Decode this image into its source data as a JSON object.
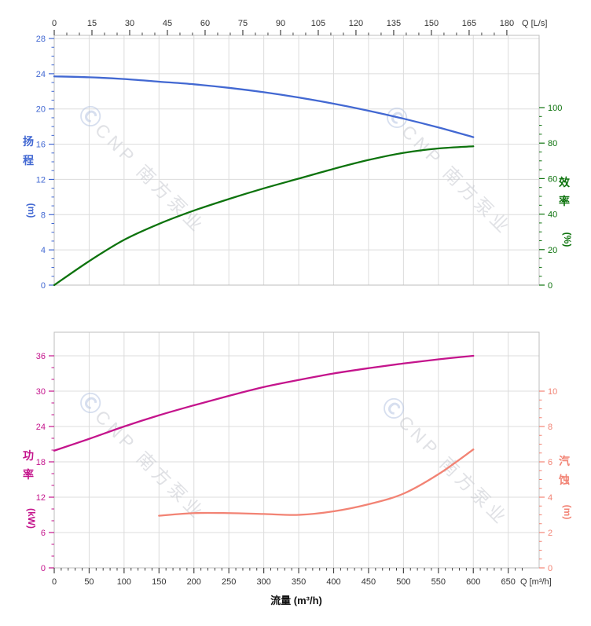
{
  "watermark": {
    "logo": "Ⓒ",
    "text": "CNP 南方泵业"
  },
  "chart_data": {
    "type": "line",
    "grid": "on",
    "x_axis_bottom": {
      "title": "流量 (m³/h)",
      "corner_label": "Q [m³/h]",
      "min": 0,
      "max": 650,
      "minor_step": 10,
      "ticks": [
        0,
        50,
        100,
        150,
        200,
        250,
        300,
        350,
        400,
        450,
        500,
        550,
        600,
        650
      ],
      "color": "#333333"
    },
    "x_axis_top": {
      "corner_label": "Q [L/s]",
      "min": 0,
      "max": 180,
      "minor_step": 5,
      "ticks": [
        0,
        15,
        30,
        45,
        60,
        75,
        90,
        105,
        120,
        135,
        150,
        165,
        180
      ],
      "color": "#333333"
    },
    "panels": [
      {
        "name": "head-efficiency",
        "left_axis": {
          "title": "扬程",
          "unit": "(m)",
          "min": 0,
          "max": 28,
          "minor_step": 1,
          "ticks": [
            0,
            4,
            8,
            12,
            16,
            20,
            24,
            28
          ],
          "color": "#4268d2"
        },
        "right_axis": {
          "title": "效率",
          "unit": "(%)",
          "min": 0,
          "max": 100,
          "minor_step": 5,
          "ticks": [
            0,
            20,
            40,
            60,
            80,
            100
          ],
          "color": "#0d730d"
        },
        "series": [
          {
            "name": "head-curve",
            "label": "扬程",
            "yaxis": "left",
            "color": "#4268d2",
            "points": [
              [
                0,
                23.7
              ],
              [
                50,
                23.6
              ],
              [
                100,
                23.4
              ],
              [
                150,
                23.1
              ],
              [
                200,
                22.8
              ],
              [
                250,
                22.4
              ],
              [
                300,
                21.9
              ],
              [
                350,
                21.3
              ],
              [
                400,
                20.6
              ],
              [
                450,
                19.8
              ],
              [
                500,
                18.9
              ],
              [
                550,
                17.9
              ],
              [
                600,
                16.8
              ]
            ]
          },
          {
            "name": "efficiency-curve",
            "label": "效率",
            "yaxis": "right",
            "color": "#0d730d",
            "points": [
              [
                0,
                0
              ],
              [
                50,
                13.5
              ],
              [
                100,
                25.5
              ],
              [
                150,
                34.5
              ],
              [
                200,
                42
              ],
              [
                250,
                48.5
              ],
              [
                300,
                54.5
              ],
              [
                350,
                60
              ],
              [
                400,
                65.5
              ],
              [
                450,
                70.5
              ],
              [
                500,
                74.5
              ],
              [
                550,
                77
              ],
              [
                600,
                78.2
              ]
            ]
          }
        ]
      },
      {
        "name": "power-npsh",
        "left_axis": {
          "title": "功率",
          "unit": "(kW)",
          "min": 0,
          "max": 36,
          "minor_step": 2,
          "ticks": [
            0,
            6,
            12,
            18,
            24,
            30,
            36
          ],
          "color": "#c4148c"
        },
        "right_axis": {
          "title": "汽蚀",
          "unit": "(m)",
          "min": 0,
          "max": 10,
          "minor_step": 0.5,
          "ticks": [
            0,
            2,
            4,
            6,
            8,
            10
          ],
          "color": "#f28374"
        },
        "series": [
          {
            "name": "power-curve",
            "label": "功率",
            "yaxis": "left",
            "color": "#c4148c",
            "points": [
              [
                0,
                19.9
              ],
              [
                50,
                21.9
              ],
              [
                100,
                24
              ],
              [
                150,
                25.9
              ],
              [
                200,
                27.6
              ],
              [
                250,
                29.2
              ],
              [
                300,
                30.7
              ],
              [
                350,
                31.9
              ],
              [
                400,
                33
              ],
              [
                450,
                33.9
              ],
              [
                500,
                34.7
              ],
              [
                550,
                35.4
              ],
              [
                600,
                36
              ]
            ]
          },
          {
            "name": "npsh-curve",
            "label": "汽蚀",
            "yaxis": "right",
            "color": "#f28374",
            "points": [
              [
                150,
                2.95
              ],
              [
                200,
                3.1
              ],
              [
                250,
                3.1
              ],
              [
                300,
                3.05
              ],
              [
                350,
                3
              ],
              [
                400,
                3.2
              ],
              [
                450,
                3.6
              ],
              [
                500,
                4.2
              ],
              [
                550,
                5.3
              ],
              [
                600,
                6.7
              ]
            ]
          }
        ]
      }
    ]
  }
}
